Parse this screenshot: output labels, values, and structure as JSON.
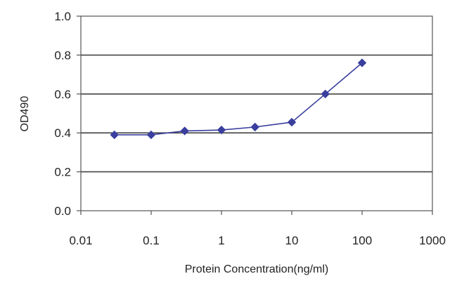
{
  "chart_data": {
    "type": "line",
    "x_scale": "log",
    "xlabel": "Protein Concentration(ng/ml)",
    "ylabel": "OD490",
    "xlim": [
      0.01,
      1000
    ],
    "ylim": [
      0.0,
      1.0
    ],
    "x_tick_labels": [
      "0.01",
      "0.1",
      "1",
      "10",
      "100",
      "1000"
    ],
    "x_ticks": [
      0.01,
      0.1,
      1,
      10,
      100,
      1000
    ],
    "y_tick_labels": [
      "0.0",
      "0.2",
      "0.4",
      "0.6",
      "0.8",
      "1.0"
    ],
    "y_ticks": [
      0.0,
      0.2,
      0.4,
      0.6,
      0.8,
      1.0
    ],
    "grid": "horizontal",
    "series": [
      {
        "color": "#3a3f9e",
        "marker": "diamond",
        "x": [
          0.03,
          0.1,
          0.3,
          1,
          3,
          10,
          30,
          100
        ],
        "y": [
          0.39,
          0.39,
          0.41,
          0.415,
          0.43,
          0.455,
          0.6,
          0.76
        ]
      }
    ]
  }
}
